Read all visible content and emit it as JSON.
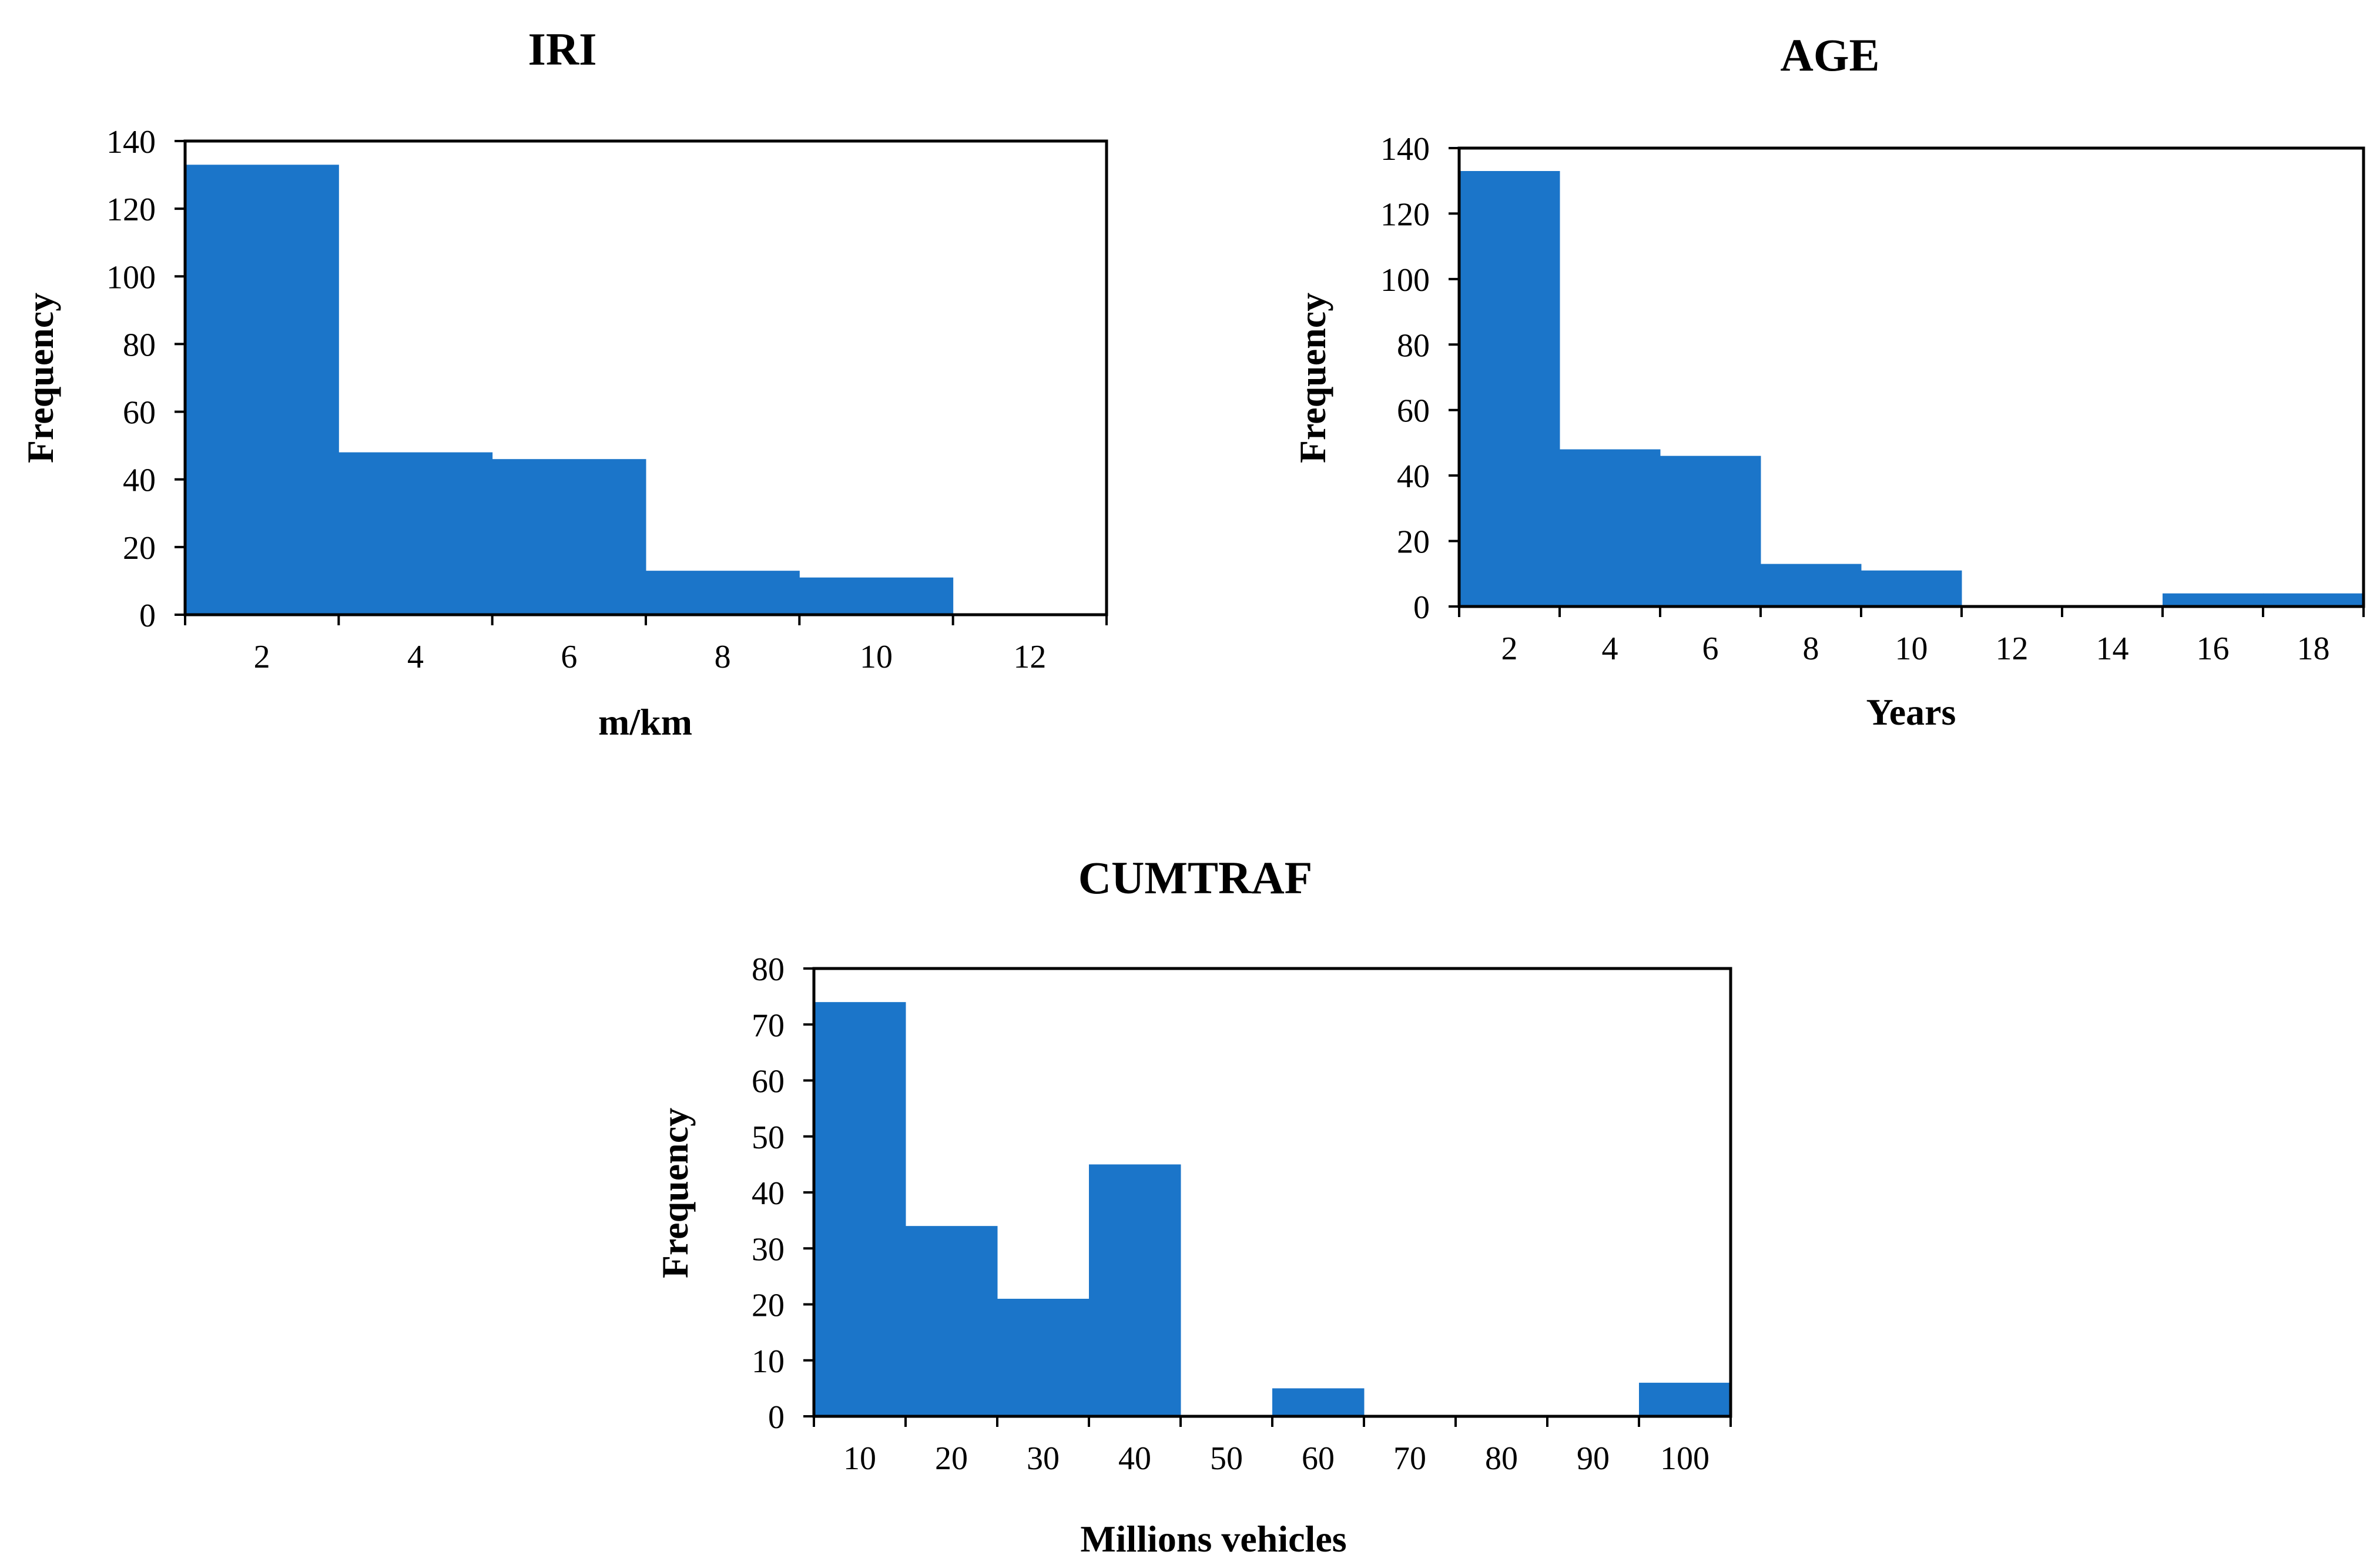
{
  "chart_data": [
    {
      "type": "bar",
      "title": "IRI",
      "xlabel": "m/km",
      "ylabel": "Frequency",
      "categories": [
        "2",
        "4",
        "6",
        "8",
        "10",
        "12"
      ],
      "values": [
        133,
        48,
        46,
        13,
        11,
        0
      ],
      "xlim": [
        1,
        13
      ],
      "ylim": [
        0,
        140
      ],
      "yticks": [
        0,
        20,
        40,
        60,
        80,
        100,
        120,
        140
      ],
      "color": "#1b75c9"
    },
    {
      "type": "bar",
      "title": "AGE",
      "xlabel": "Years",
      "ylabel": "Frequency",
      "categories": [
        "2",
        "4",
        "6",
        "8",
        "10",
        "12",
        "14",
        "16",
        "18"
      ],
      "values": [
        133,
        48,
        46,
        13,
        11,
        0,
        0,
        4,
        4
      ],
      "xlim": [
        1,
        19
      ],
      "ylim": [
        0,
        140
      ],
      "yticks": [
        0,
        20,
        40,
        60,
        80,
        100,
        120,
        140
      ],
      "color": "#1b75c9"
    },
    {
      "type": "bar",
      "title": "CUMTRAF",
      "xlabel": "Millions vehicles",
      "ylabel": "Frequency",
      "categories": [
        "10",
        "20",
        "30",
        "40",
        "50",
        "60",
        "70",
        "80",
        "90",
        "100"
      ],
      "values": [
        74,
        34,
        21,
        45,
        0,
        5,
        0,
        0,
        0,
        6
      ],
      "xlim": [
        5,
        105
      ],
      "ylim": [
        0,
        80
      ],
      "yticks": [
        0,
        10,
        20,
        30,
        40,
        50,
        60,
        70,
        80
      ],
      "color": "#1b75c9"
    }
  ]
}
